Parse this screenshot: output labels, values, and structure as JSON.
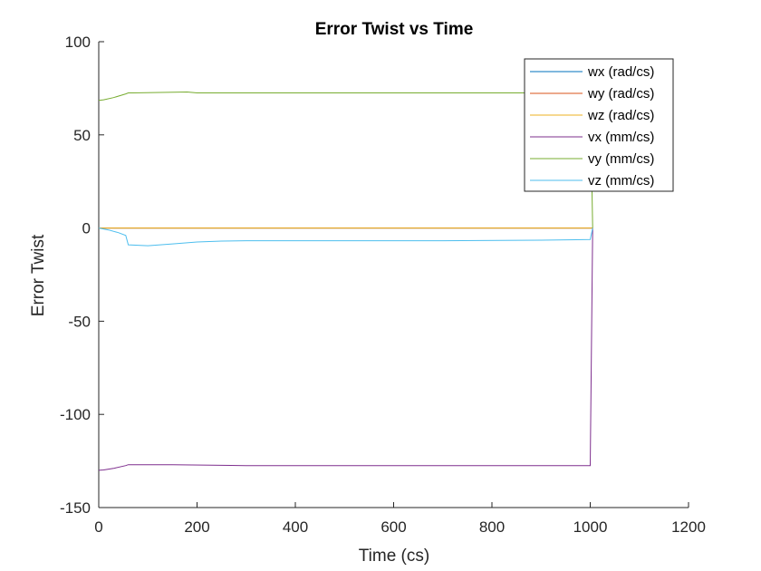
{
  "chart_data": {
    "type": "line",
    "title": "Error Twist vs Time",
    "xlabel": "Time (cs)",
    "ylabel": "Error Twist",
    "xlim": [
      0,
      1200
    ],
    "ylim": [
      -150,
      100
    ],
    "xticks": [
      0,
      200,
      400,
      600,
      800,
      1000,
      1200
    ],
    "yticks": [
      -150,
      -100,
      -50,
      0,
      50,
      100
    ],
    "grid": false,
    "legend_position": "top-right",
    "series": [
      {
        "name": "wx (rad/cs)",
        "color": "#0072BD",
        "x": [
          0,
          1000,
          1005
        ],
        "y": [
          0,
          0,
          0
        ]
      },
      {
        "name": "wy (rad/cs)",
        "color": "#D95319",
        "x": [
          0,
          1000,
          1005
        ],
        "y": [
          0,
          0,
          0
        ]
      },
      {
        "name": "wz (rad/cs)",
        "color": "#EDB120",
        "x": [
          0,
          1000,
          1005
        ],
        "y": [
          0,
          0,
          0
        ]
      },
      {
        "name": "vx (mm/cs)",
        "color": "#7E2F8E",
        "x": [
          0,
          10,
          30,
          55,
          60,
          70,
          150,
          300,
          1000,
          1005
        ],
        "y": [
          -130,
          -129.8,
          -129,
          -127.5,
          -127,
          -127,
          -127,
          -127.5,
          -127.5,
          0
        ]
      },
      {
        "name": "vy (mm/cs)",
        "color": "#77AC30",
        "x": [
          0,
          10,
          30,
          55,
          60,
          70,
          180,
          200,
          300,
          1000,
          1005
        ],
        "y": [
          68.5,
          68.8,
          70,
          72,
          72.5,
          72.5,
          73,
          72.5,
          72.5,
          72.5,
          0
        ]
      },
      {
        "name": "vz (mm/cs)",
        "color": "#4DBEEE",
        "x": [
          0,
          20,
          40,
          55,
          60,
          100,
          150,
          200,
          250,
          300,
          500,
          700,
          900,
          1000,
          1005
        ],
        "y": [
          0,
          -1,
          -2.5,
          -4,
          -9,
          -9.5,
          -8.5,
          -7.5,
          -7,
          -6.8,
          -6.8,
          -6.8,
          -6.5,
          -6.2,
          0
        ]
      }
    ]
  }
}
